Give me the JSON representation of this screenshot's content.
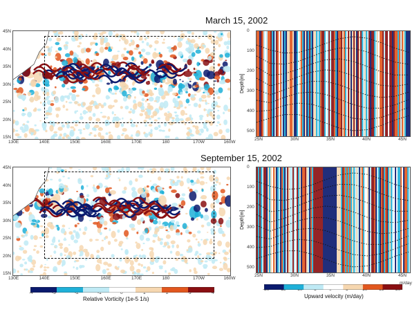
{
  "titles": {
    "top": "March 15, 2002",
    "bottom": "September 15, 2002"
  },
  "map_lat_ticks_top": [
    "45N",
    "40N",
    "35N",
    "30N",
    "25N",
    "20N",
    "15N"
  ],
  "map_lat_ticks_bottom": [
    "45N",
    "40N",
    "35N",
    "30N",
    "25N",
    "20N",
    "15N"
  ],
  "map_lon_ticks": [
    "130E",
    "140E",
    "150E",
    "160E",
    "170E",
    "180",
    "170W",
    "160W"
  ],
  "section_depth_ticks": [
    "0",
    "100",
    "200",
    "300",
    "400",
    "500"
  ],
  "section_lat_ticks": [
    "25N",
    "30N",
    "35N",
    "40N",
    "45N"
  ],
  "section_ylabel": "Depth[m]",
  "vorticity_colorbar": {
    "ticks": [
      "-4",
      "-3",
      "-2",
      "-1",
      "0",
      "1",
      "2",
      "3",
      "4"
    ],
    "label": "Relative Vorticity (1e-5 1/s)"
  },
  "velocity_colorbar": {
    "ticks": [
      "-20",
      "-15",
      "-10",
      "-5",
      "0",
      "5",
      "10",
      "15",
      "20"
    ],
    "unit_tick": "m/day",
    "label": "Upward velocity (m/day)"
  },
  "colors": {
    "neg_dark": "#0a1a6e",
    "neg_mid": "#1fb0d8",
    "neg_light": "#bfeaf5",
    "zero": "#ffffff",
    "pos_light": "#f6d7b0",
    "pos_mid": "#e2571e",
    "pos_dark": "#8a0f12"
  }
}
